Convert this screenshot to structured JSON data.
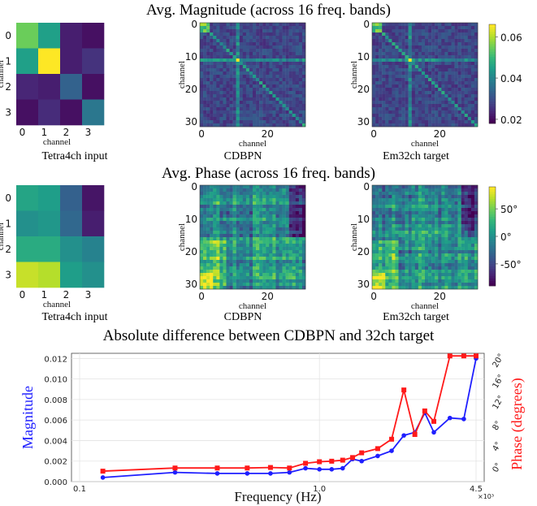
{
  "titles": {
    "magnitude": "Avg. Magnitude (across 16 freq. bands)",
    "phase": "Avg. Phase (across 16 freq. bands)",
    "difference": "Absolute difference between CDBPN and 32ch target"
  },
  "subplot_labels": {
    "tetra": "Tetra4ch input",
    "cdbpn": "CDBPN",
    "em32": "Em32ch target"
  },
  "chart_data": [
    {
      "type": "heatmap",
      "name": "magnitude-tetra4ch-input",
      "xlabel": "channel",
      "ylabel": "channel",
      "ticks": [
        "0",
        "1",
        "2",
        "3"
      ],
      "values": [
        [
          0.055,
          0.045,
          0.022,
          0.02
        ],
        [
          0.045,
          0.066,
          0.022,
          0.025
        ],
        [
          0.023,
          0.022,
          0.033,
          0.02
        ],
        [
          0.02,
          0.024,
          0.02,
          0.037
        ]
      ]
    },
    {
      "type": "heatmap",
      "name": "magnitude-cdbpn",
      "xlabel": "channel",
      "ylabel": "channel",
      "xticks": [
        "0",
        "20"
      ],
      "yticks": [
        "0",
        "10",
        "20",
        "30"
      ],
      "size": 32
    },
    {
      "type": "heatmap",
      "name": "magnitude-em32ch-target",
      "xlabel": "channel",
      "ylabel": "channel",
      "xticks": [
        "0",
        "20"
      ],
      "yticks": [
        "0",
        "10",
        "20",
        "30"
      ],
      "size": 32,
      "colorbar": {
        "ticks": [
          "0.06",
          "0.04",
          "0.02"
        ],
        "range": [
          0.018,
          0.066
        ]
      }
    },
    {
      "type": "heatmap",
      "name": "phase-tetra4ch-input",
      "ticks": [
        "0",
        "1",
        "2",
        "3"
      ],
      "xlabel": "channel",
      "ylabel": "channel",
      "values": [
        [
          15,
          10,
          -35,
          -80
        ],
        [
          0,
          5,
          -30,
          -75
        ],
        [
          20,
          20,
          0,
          -10
        ],
        [
          75,
          70,
          10,
          0
        ]
      ]
    },
    {
      "type": "heatmap",
      "name": "phase-cdbpn",
      "xlabel": "channel",
      "ylabel": "channel",
      "xticks": [
        "0",
        "20"
      ],
      "yticks": [
        "0",
        "10",
        "20",
        "30"
      ],
      "size": 32
    },
    {
      "type": "heatmap",
      "name": "phase-em32ch-target",
      "xlabel": "channel",
      "ylabel": "channel",
      "xticks": [
        "0",
        "20"
      ],
      "yticks": [
        "0",
        "10",
        "20",
        "30"
      ],
      "size": 32,
      "colorbar": {
        "ticks": [
          "50°",
          "0°",
          "-50°"
        ],
        "range": [
          -90,
          90
        ]
      }
    },
    {
      "type": "line",
      "name": "absolute-difference",
      "xlabel": "Frequency (Hz)",
      "ylabel": "Magnitude",
      "y2label": "Phase (degrees)",
      "x_scale": "log",
      "xlim": [
        0.1,
        4.5
      ],
      "xtick_labels": [
        "0.1",
        "1.0",
        "4.5"
      ],
      "x_multiplier": "×10³",
      "ylim": [
        0,
        0.0125
      ],
      "yticks": [
        "0.000",
        "0.002",
        "0.004",
        "0.006",
        "0.008",
        "0.010",
        "0.012"
      ],
      "y2lim": [
        -2,
        22.5
      ],
      "y2ticks": [
        "0°",
        "4°",
        "8°",
        "12°",
        "16°",
        "20°"
      ],
      "x": [
        0.125,
        0.25,
        0.375,
        0.5,
        0.625,
        0.75,
        0.875,
        1.0,
        1.125,
        1.25,
        1.375,
        1.5,
        1.75,
        2.0,
        2.25,
        2.5,
        2.75,
        3.0,
        3.5,
        4.0,
        4.5
      ],
      "series": [
        {
          "axis": "left",
          "color": "#1f1fff",
          "values": [
            0.0004,
            0.0009,
            0.0008,
            0.0008,
            0.0008,
            0.0009,
            0.0013,
            0.0012,
            0.0012,
            0.0013,
            0.0022,
            0.002,
            0.0025,
            0.003,
            0.0045,
            0.0048,
            0.0067,
            0.0048,
            0.0062,
            0.0061,
            0.012
          ]
        },
        {
          "axis": "right",
          "color": "#ff1a1a",
          "values": [
            0.0,
            0.6,
            0.6,
            0.6,
            0.7,
            0.6,
            1.5,
            1.8,
            1.9,
            2.1,
            2.6,
            3.5,
            4.3,
            6.1,
            15.5,
            7.0,
            11.5,
            9.5,
            22.0,
            22.0,
            22.0
          ]
        }
      ]
    }
  ]
}
